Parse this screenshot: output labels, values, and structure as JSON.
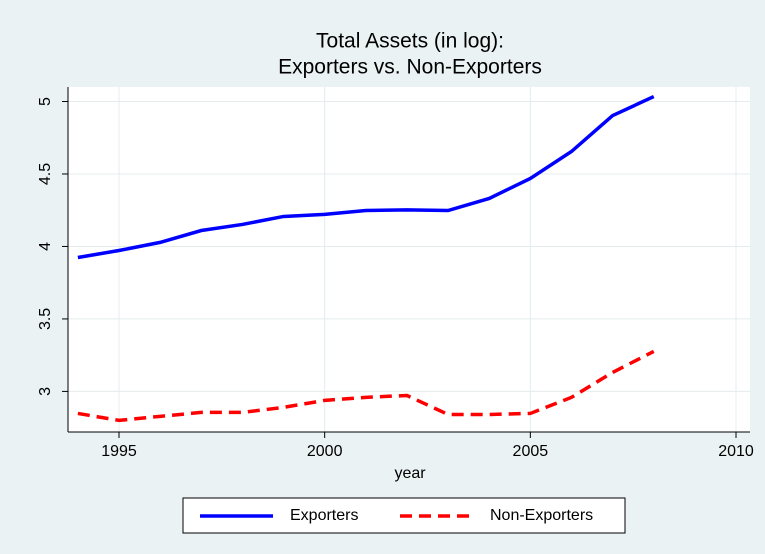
{
  "chart_data": {
    "type": "line",
    "title": [
      "Total Assets (in log):",
      "Exporters vs. Non-Exporters"
    ],
    "x_label": "year",
    "x": [
      1994,
      1995,
      1996,
      1997,
      1998,
      1999,
      2000,
      2001,
      2002,
      2003,
      2004,
      2005,
      2006,
      2007,
      2008
    ],
    "series": [
      {
        "name": "Exporters",
        "color": "#0000ff",
        "dash": "solid",
        "values": [
          3.924,
          3.972,
          4.028,
          4.11,
          4.152,
          4.207,
          4.221,
          4.248,
          4.252,
          4.248,
          4.331,
          4.469,
          4.655,
          4.903,
          5.034
        ]
      },
      {
        "name": "Non-Exporters",
        "color": "#ff0000",
        "dash": "dashed",
        "values": [
          2.848,
          2.8,
          2.828,
          2.855,
          2.855,
          2.89,
          2.938,
          2.959,
          2.972,
          2.841,
          2.841,
          2.848,
          2.959,
          3.131,
          3.276
        ]
      }
    ],
    "xlim": [
      1993.76,
      2010.34
    ],
    "xticks": [
      1995,
      2000,
      2005,
      2010
    ],
    "ylim": [
      2.72,
      5.1
    ],
    "yticks": [
      3,
      3.5,
      4,
      4.5,
      5
    ],
    "grid": true,
    "legend": "bottom"
  }
}
